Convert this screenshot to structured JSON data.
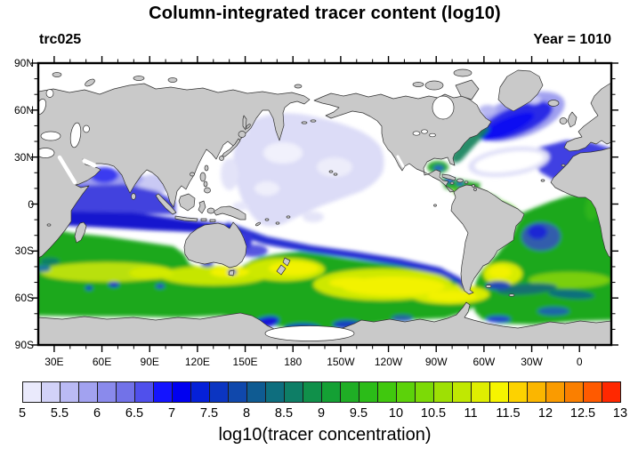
{
  "figure": {
    "title": "Column-integrated tracer content (log10)",
    "label_left": "trc025",
    "label_right": "Year = 1010"
  },
  "map": {
    "lat_tick_labels": [
      "90N",
      "60N",
      "30N",
      "0",
      "30S",
      "60S",
      "90S"
    ],
    "lon_tick_labels": [
      "30E",
      "60E",
      "90E",
      "120E",
      "150E",
      "180",
      "150W",
      "120W",
      "90W",
      "60W",
      "30W",
      "0"
    ],
    "land_color": "#c9c9c9",
    "coast_color": "#333333",
    "ocean_color": "#ffffff",
    "frame_color": "#000000"
  },
  "colorbar": {
    "title": "log10(tracer concentration)",
    "tick_labels": [
      "5",
      "5.5",
      "6",
      "6.5",
      "7",
      "7.5",
      "8",
      "8.5",
      "9",
      "9.5",
      "10",
      "10.5",
      "11",
      "11.5",
      "12",
      "12.5",
      "13"
    ],
    "cell_colors": [
      "#EAEAFC",
      "#D2D2F8",
      "#BABAF4",
      "#A2A2F0",
      "#8A8AEC",
      "#7272E8",
      "#5050EC",
      "#1414FF",
      "#0000F0",
      "#0520D8",
      "#0B35C2",
      "#1048AC",
      "#0F5B92",
      "#0E6E7E",
      "#0E7E66",
      "#10904A",
      "#14A034",
      "#1FAE25",
      "#2BBC18",
      "#40C80E",
      "#5CD20A",
      "#7CDA06",
      "#9EE004",
      "#C0E802",
      "#DFEE01",
      "#F6F400",
      "#FDD200",
      "#FBB600",
      "#FA9B00",
      "#FA7F00",
      "#FF5A00",
      "#FF2800"
    ]
  },
  "chart_data": {
    "type": "heatmap",
    "subtype": "filled-contour-world-map",
    "title": "Column-integrated tracer content (log10)",
    "annotations": [
      "trc025",
      "Year = 1010"
    ],
    "colorbar_label": "log10(tracer concentration)",
    "projection": "cylindrical-equidistant, Pacific-centered",
    "lon_axis": {
      "range_deg_east": [
        20,
        380
      ],
      "major_tick_step": 30,
      "minor_tick_step": 10
    },
    "lat_axis": {
      "range": [
        -90,
        90
      ],
      "major_tick_step": 30,
      "minor_tick_step": 10
    },
    "contour_levels": {
      "min": 5,
      "max": 13,
      "step": 0.25
    },
    "legend_position": "bottom horizontal labelbar",
    "grid": false,
    "regions_approx_log10": [
      {
        "region": "Central North Pacific 150E-130W, 0-40N",
        "value": "5.0-5.8 (pale lavender)"
      },
      {
        "region": "NE Pacific, eastern tropical Pacific, Arctic, Mediterranean",
        "value": "below 5 (white / no fill)"
      },
      {
        "region": "Northern Arabian Sea & Bay of Bengal",
        "value": "below 5 to 6"
      },
      {
        "region": "SW Indian coast plume",
        "value": "6.5-7.2"
      },
      {
        "region": "Tropical Indian Ocean 0-15S",
        "value": "6.5-7.8"
      },
      {
        "region": "Indian Ocean transition band 10-20S",
        "value": "7.5-8.5 (dark blue streak)"
      },
      {
        "region": "Southern Indian Ocean 30-55S",
        "value": "9.5-11"
      },
      {
        "region": "Around New Zealand and south of Australia",
        "value": "11-11.5 (yellow maximum)"
      },
      {
        "region": "South Pacific 40-65S through Drake Passage",
        "value": "10.5-11.5 (yellow band)"
      },
      {
        "region": "Argentine Basin patch",
        "value": "11-11.5"
      },
      {
        "region": "South Atlantic subtropics",
        "value": "9.5-10.5 with 7.5-8.5 blue tongue off Angola"
      },
      {
        "region": "Equatorial Atlantic, Caribbean, Gulf of Mexico",
        "value": "9-10.5 (green)"
      },
      {
        "region": "Gulf Stream / North Atlantic plume toward Iceland-UK",
        "value": "6.5-8.5 (blue)"
      },
      {
        "region": "North Atlantic subtropical gyre core",
        "value": "below 5 (white wedge)"
      },
      {
        "region": "US east coast strip",
        "value": "8.5-9 (teal)"
      },
      {
        "region": "Antarctic coastal patches (Ross/Amundsen, Weddell)",
        "value": "7-8.5 (blue)"
      },
      {
        "region": "Ross Ice Shelf",
        "value": "no data (white)"
      }
    ]
  }
}
